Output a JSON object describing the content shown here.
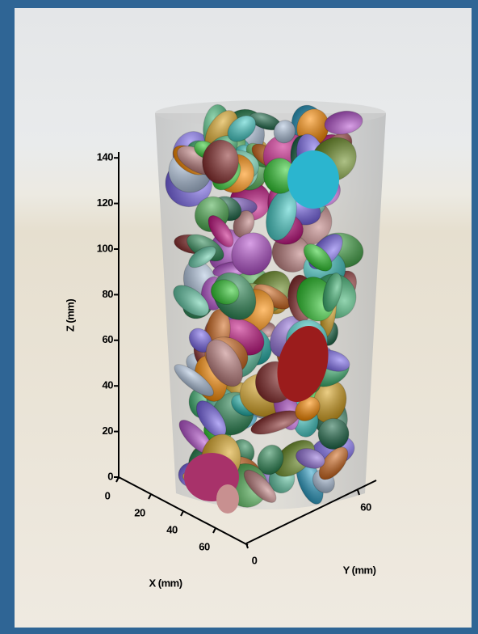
{
  "z_axis": {
    "label": "Z (mm)",
    "ticks": [
      0,
      20,
      40,
      60,
      80,
      100,
      120,
      140
    ]
  },
  "x_axis": {
    "label": "X (mm)",
    "ticks": [
      0,
      20,
      40,
      60
    ]
  },
  "y_axis": {
    "label": "Y (mm)",
    "ticks": [
      0,
      60
    ]
  }
}
